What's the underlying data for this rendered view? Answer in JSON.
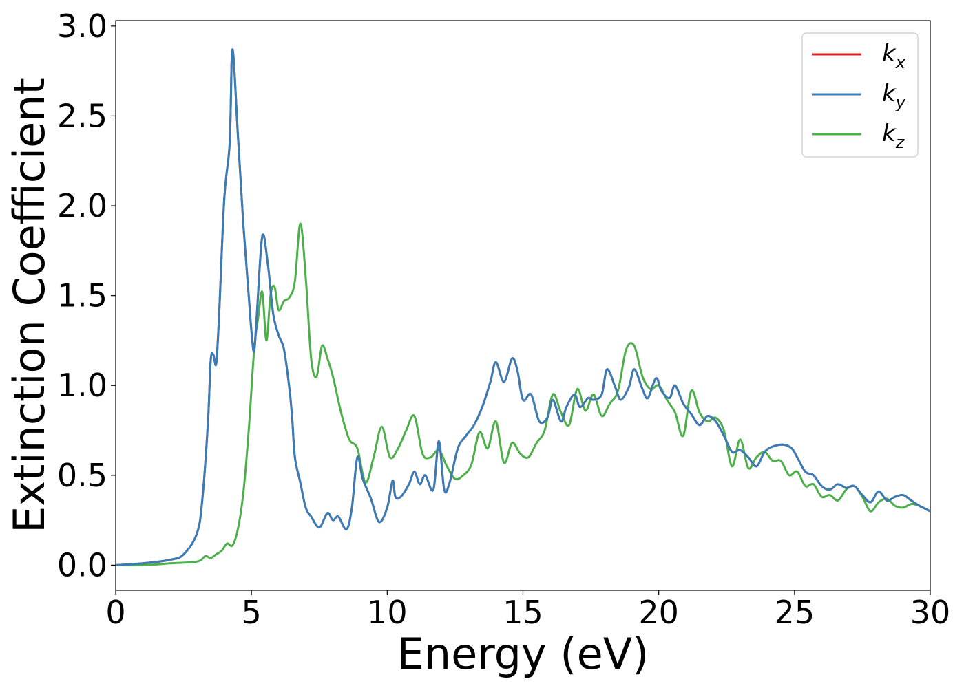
{
  "chart_data": {
    "type": "line",
    "title": "",
    "xlabel": "Energy (eV)",
    "ylabel": "Extinction Coefficient",
    "xlim": [
      0,
      30
    ],
    "ylim": [
      -0.14,
      3.03
    ],
    "xticks": [
      0,
      5,
      10,
      15,
      20,
      25,
      30
    ],
    "xtick_labels": [
      "0",
      "5",
      "10",
      "15",
      "20",
      "25",
      "30"
    ],
    "yticks": [
      0.0,
      0.5,
      1.0,
      1.5,
      2.0,
      2.5,
      3.0
    ],
    "ytick_labels": [
      "0.0",
      "0.5",
      "1.0",
      "1.5",
      "2.0",
      "2.5",
      "3.0"
    ],
    "grid": false,
    "legend_position": "top-right",
    "series": [
      {
        "name": "k",
        "subscript": "x",
        "color": "#e41a1c",
        "x": [
          0,
          1,
          2,
          2.5,
          3,
          3.2,
          3.4,
          3.5,
          3.6,
          3.7,
          3.8,
          4.0,
          4.2,
          4.3,
          4.5,
          4.7,
          4.9,
          5.0,
          5.1,
          5.2,
          5.4,
          5.6,
          5.8,
          6.0,
          6.2,
          6.4,
          6.5,
          6.6,
          6.8,
          7.0,
          7.2,
          7.5,
          7.8,
          8.0,
          8.2,
          8.5,
          8.7,
          8.9,
          9.1,
          9.4,
          9.7,
          10.0,
          10.2,
          10.3,
          10.5,
          10.8,
          11.0,
          11.2,
          11.4,
          11.7,
          11.9,
          12.1,
          12.3,
          12.6,
          12.9,
          13.2,
          13.5,
          13.8,
          14.0,
          14.3,
          14.6,
          14.8,
          15.0,
          15.3,
          15.6,
          15.9,
          16.1,
          16.4,
          16.6,
          16.9,
          17.1,
          17.4,
          17.6,
          17.9,
          18.1,
          18.4,
          18.6,
          18.9,
          19.1,
          19.4,
          19.6,
          19.9,
          20.1,
          20.4,
          20.6,
          20.9,
          21.2,
          21.5,
          21.8,
          22.1,
          22.4,
          22.7,
          23.0,
          23.3,
          23.6,
          23.9,
          24.2,
          24.6,
          24.9,
          25.1,
          25.4,
          25.7,
          26.0,
          26.3,
          26.6,
          26.9,
          27.2,
          27.5,
          27.8,
          28.1,
          28.4,
          28.7,
          29.0,
          29.3,
          29.6,
          30.0
        ],
        "y": [
          0.0,
          0.01,
          0.03,
          0.06,
          0.18,
          0.38,
          0.8,
          1.14,
          1.17,
          1.12,
          1.36,
          2.04,
          2.35,
          2.87,
          2.4,
          1.9,
          1.5,
          1.3,
          1.19,
          1.4,
          1.83,
          1.68,
          1.4,
          1.28,
          1.2,
          0.98,
          0.82,
          0.6,
          0.46,
          0.32,
          0.27,
          0.21,
          0.29,
          0.25,
          0.27,
          0.2,
          0.32,
          0.6,
          0.48,
          0.37,
          0.24,
          0.32,
          0.47,
          0.38,
          0.38,
          0.45,
          0.52,
          0.45,
          0.5,
          0.42,
          0.69,
          0.42,
          0.46,
          0.65,
          0.72,
          0.78,
          0.88,
          1.02,
          1.13,
          1.02,
          1.15,
          1.08,
          0.92,
          0.95,
          0.8,
          0.82,
          0.92,
          0.8,
          0.88,
          0.95,
          0.88,
          0.93,
          0.92,
          0.95,
          1.09,
          0.99,
          0.92,
          0.99,
          1.09,
          0.98,
          0.93,
          1.04,
          0.97,
          0.93,
          1.0,
          0.9,
          0.84,
          0.78,
          0.83,
          0.8,
          0.72,
          0.63,
          0.64,
          0.6,
          0.55,
          0.63,
          0.66,
          0.67,
          0.65,
          0.6,
          0.52,
          0.5,
          0.44,
          0.42,
          0.45,
          0.43,
          0.44,
          0.39,
          0.35,
          0.41,
          0.36,
          0.38,
          0.39,
          0.36,
          0.33,
          0.3
        ]
      },
      {
        "name": "k",
        "subscript": "y",
        "color": "#377eb8",
        "x": [
          0,
          1,
          2,
          2.5,
          3,
          3.2,
          3.4,
          3.5,
          3.6,
          3.7,
          3.8,
          4.0,
          4.2,
          4.3,
          4.5,
          4.7,
          4.9,
          5.0,
          5.1,
          5.2,
          5.4,
          5.6,
          5.8,
          6.0,
          6.2,
          6.4,
          6.5,
          6.6,
          6.8,
          7.0,
          7.2,
          7.5,
          7.8,
          8.0,
          8.2,
          8.5,
          8.7,
          8.9,
          9.1,
          9.4,
          9.7,
          10.0,
          10.2,
          10.3,
          10.5,
          10.8,
          11.0,
          11.2,
          11.4,
          11.7,
          11.9,
          12.1,
          12.3,
          12.6,
          12.9,
          13.2,
          13.5,
          13.8,
          14.0,
          14.3,
          14.6,
          14.8,
          15.0,
          15.3,
          15.6,
          15.9,
          16.1,
          16.4,
          16.6,
          16.9,
          17.1,
          17.4,
          17.6,
          17.9,
          18.1,
          18.4,
          18.6,
          18.9,
          19.1,
          19.4,
          19.6,
          19.9,
          20.1,
          20.4,
          20.6,
          20.9,
          21.2,
          21.5,
          21.8,
          22.1,
          22.4,
          22.7,
          23.0,
          23.3,
          23.6,
          23.9,
          24.2,
          24.6,
          24.9,
          25.1,
          25.4,
          25.7,
          26.0,
          26.3,
          26.6,
          26.9,
          27.2,
          27.5,
          27.8,
          28.1,
          28.4,
          28.7,
          29.0,
          29.3,
          29.6,
          30.0
        ],
        "y": [
          0.0,
          0.01,
          0.03,
          0.06,
          0.18,
          0.38,
          0.8,
          1.14,
          1.17,
          1.12,
          1.36,
          2.04,
          2.35,
          2.87,
          2.4,
          1.9,
          1.5,
          1.3,
          1.19,
          1.4,
          1.83,
          1.68,
          1.4,
          1.28,
          1.2,
          0.98,
          0.82,
          0.6,
          0.46,
          0.32,
          0.27,
          0.21,
          0.29,
          0.25,
          0.27,
          0.2,
          0.32,
          0.6,
          0.48,
          0.37,
          0.24,
          0.32,
          0.47,
          0.38,
          0.38,
          0.45,
          0.52,
          0.45,
          0.5,
          0.42,
          0.69,
          0.42,
          0.46,
          0.65,
          0.72,
          0.78,
          0.88,
          1.02,
          1.13,
          1.02,
          1.15,
          1.08,
          0.92,
          0.95,
          0.8,
          0.82,
          0.92,
          0.8,
          0.88,
          0.95,
          0.88,
          0.93,
          0.92,
          0.95,
          1.09,
          0.99,
          0.92,
          0.99,
          1.09,
          0.98,
          0.93,
          1.04,
          0.97,
          0.93,
          1.0,
          0.9,
          0.84,
          0.78,
          0.83,
          0.8,
          0.72,
          0.63,
          0.64,
          0.6,
          0.55,
          0.63,
          0.66,
          0.67,
          0.65,
          0.6,
          0.52,
          0.5,
          0.44,
          0.42,
          0.45,
          0.43,
          0.44,
          0.39,
          0.35,
          0.41,
          0.36,
          0.38,
          0.39,
          0.36,
          0.33,
          0.3
        ]
      },
      {
        "name": "k",
        "subscript": "z",
        "color": "#4daf4a",
        "x": [
          0,
          1,
          2,
          3,
          3.3,
          3.5,
          3.7,
          3.9,
          4.1,
          4.3,
          4.5,
          4.7,
          4.9,
          5.1,
          5.25,
          5.4,
          5.55,
          5.7,
          5.85,
          6.0,
          6.2,
          6.4,
          6.6,
          6.8,
          7.0,
          7.2,
          7.4,
          7.6,
          7.8,
          8.0,
          8.3,
          8.6,
          8.9,
          9.2,
          9.5,
          9.8,
          10.1,
          10.4,
          10.7,
          11.0,
          11.3,
          11.6,
          11.9,
          12.2,
          12.5,
          12.8,
          13.1,
          13.4,
          13.7,
          14.0,
          14.3,
          14.6,
          14.9,
          15.2,
          15.5,
          15.8,
          16.1,
          16.4,
          16.7,
          17.0,
          17.3,
          17.6,
          17.9,
          18.2,
          18.5,
          18.8,
          19.1,
          19.4,
          19.7,
          20.0,
          20.3,
          20.6,
          20.9,
          21.2,
          21.5,
          21.8,
          22.1,
          22.4,
          22.7,
          23.0,
          23.3,
          23.6,
          23.9,
          24.2,
          24.5,
          24.8,
          25.1,
          25.4,
          25.7,
          26.0,
          26.3,
          26.6,
          26.9,
          27.2,
          27.5,
          27.8,
          28.1,
          28.4,
          28.7,
          29.0,
          29.3,
          29.6,
          30.0
        ],
        "y": [
          0.0,
          0.0,
          0.01,
          0.02,
          0.05,
          0.04,
          0.06,
          0.08,
          0.12,
          0.11,
          0.2,
          0.4,
          0.75,
          1.2,
          1.38,
          1.52,
          1.25,
          1.5,
          1.55,
          1.42,
          1.47,
          1.49,
          1.58,
          1.9,
          1.6,
          1.15,
          1.05,
          1.22,
          1.15,
          1.05,
          0.85,
          0.7,
          0.65,
          0.46,
          0.6,
          0.77,
          0.6,
          0.65,
          0.75,
          0.83,
          0.62,
          0.6,
          0.64,
          0.55,
          0.48,
          0.5,
          0.56,
          0.74,
          0.65,
          0.8,
          0.57,
          0.68,
          0.62,
          0.6,
          0.68,
          0.75,
          0.95,
          0.85,
          0.78,
          0.98,
          0.86,
          0.95,
          0.83,
          0.9,
          0.97,
          1.2,
          1.22,
          1.05,
          0.98,
          1.0,
          0.92,
          0.85,
          0.72,
          0.97,
          0.85,
          0.8,
          0.82,
          0.75,
          0.55,
          0.7,
          0.54,
          0.6,
          0.63,
          0.58,
          0.58,
          0.5,
          0.52,
          0.44,
          0.45,
          0.38,
          0.39,
          0.36,
          0.42,
          0.44,
          0.38,
          0.3,
          0.35,
          0.37,
          0.33,
          0.32,
          0.34,
          0.33,
          0.3
        ]
      }
    ]
  }
}
